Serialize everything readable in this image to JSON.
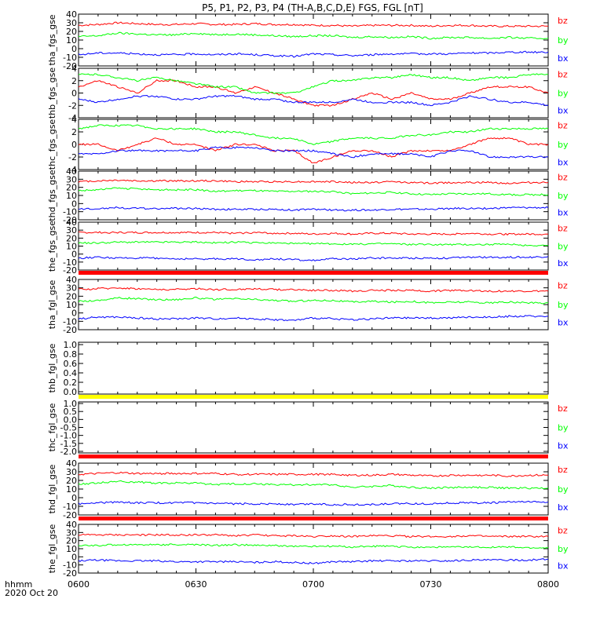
{
  "title": "P5, P1, P2, P3, P4 (TH-A,B,C,D,E) FGS, FGL [nT]",
  "x_axis": {
    "unit_label": "hhmm",
    "date_label": "2020 Oct 20",
    "ticks": [
      "0600",
      "0630",
      "0700",
      "0730",
      "0800"
    ],
    "range_minutes": [
      0,
      120
    ]
  },
  "colors": {
    "bx": "#0000ff",
    "by": "#00ff00",
    "bz": "#ff0000",
    "red_bar": "#ff0000",
    "yellow_bar": "#ffff00"
  },
  "chart_data": [
    {
      "type": "line",
      "ylabel": "tha_fgs_gse",
      "ylim": [
        -20,
        40
      ],
      "yticks": [
        -20,
        -10,
        0,
        10,
        20,
        30,
        40
      ],
      "legend": [
        "bz",
        "by",
        "bx"
      ],
      "series": [
        {
          "name": "bz",
          "values": [
            27,
            28,
            30,
            29,
            28,
            28,
            29,
            28,
            28,
            29,
            28,
            28,
            27,
            27,
            26,
            27,
            27,
            27,
            26,
            27,
            27,
            26,
            26,
            26,
            26
          ]
        },
        {
          "name": "by",
          "values": [
            14,
            15,
            18,
            17,
            16,
            16,
            18,
            16,
            17,
            16,
            15,
            14,
            15,
            15,
            13,
            14,
            13,
            14,
            12,
            13,
            13,
            12,
            13,
            12,
            12
          ]
        },
        {
          "name": "bx",
          "values": [
            -7,
            -5,
            -5,
            -6,
            -7,
            -7,
            -6,
            -7,
            -6,
            -7,
            -8,
            -9,
            -6,
            -7,
            -8,
            -7,
            -6,
            -6,
            -6,
            -6,
            -5,
            -5,
            -4,
            -4,
            -4
          ]
        }
      ]
    },
    {
      "type": "line",
      "ylabel": "thb_fgs_gse",
      "ylim": [
        -4,
        4
      ],
      "yticks": [
        -4,
        -2,
        0,
        2,
        4
      ],
      "legend": [
        "bz",
        "by",
        "bx"
      ],
      "series": [
        {
          "name": "bz",
          "values": [
            1,
            2,
            1,
            0,
            2,
            2,
            1,
            1,
            0,
            1,
            0,
            -1,
            -2,
            -2,
            -1,
            0,
            -1,
            0,
            -1,
            -1,
            0,
            1,
            1,
            1,
            0
          ]
        },
        {
          "name": "by",
          "values": [
            3,
            3,
            2.5,
            2,
            2.5,
            2,
            1.5,
            1,
            1,
            0,
            0,
            0,
            1,
            2,
            2,
            2.5,
            2.5,
            3,
            2.5,
            2.5,
            2,
            2.5,
            2.5,
            3,
            3
          ]
        },
        {
          "name": "bx",
          "values": [
            -1,
            -1.5,
            -1,
            -0.5,
            -0.5,
            -1,
            -1,
            -0.5,
            -0.5,
            -1,
            -1,
            -1.5,
            -1.5,
            -1.5,
            -1,
            -1.5,
            -1.5,
            -1.5,
            -2,
            -1.5,
            -0.5,
            -1,
            -1.5,
            -1.5,
            -2
          ]
        }
      ]
    },
    {
      "type": "line",
      "ylabel": "thc_fgs_gse",
      "ylim": [
        -4,
        4
      ],
      "yticks": [
        -4,
        -2,
        0,
        2,
        4
      ],
      "legend": [
        "bz",
        "by",
        "bx"
      ],
      "series": [
        {
          "name": "bz",
          "values": [
            0,
            0,
            -1,
            0,
            1,
            0,
            0,
            -1,
            0,
            0,
            -1,
            -1,
            -3,
            -2,
            -1,
            -1,
            -2,
            -1,
            -1,
            -1,
            0,
            1,
            1,
            0,
            0
          ]
        },
        {
          "name": "by",
          "values": [
            2.5,
            3,
            3,
            3,
            2.5,
            2.5,
            2.5,
            2,
            2,
            1.5,
            1,
            1,
            0,
            0.5,
            1,
            1,
            1,
            1.5,
            1.5,
            2,
            2,
            2.5,
            2.5,
            2.5,
            2.5
          ]
        },
        {
          "name": "bx",
          "values": [
            -1.5,
            -1.5,
            -1,
            -1,
            -1,
            -1,
            -1,
            -0.5,
            -0.5,
            -0.5,
            -1,
            -1,
            -1,
            -1.5,
            -2,
            -1.5,
            -1.5,
            -1.5,
            -2,
            -1,
            -1,
            -2,
            -2,
            -2,
            -2
          ]
        }
      ]
    },
    {
      "type": "line",
      "ylabel": "thd_fgs_gse",
      "ylim": [
        -20,
        40
      ],
      "yticks": [
        -20,
        -10,
        0,
        10,
        20,
        30,
        40
      ],
      "legend": [
        "bz",
        "by",
        "bx"
      ],
      "series": [
        {
          "name": "bz",
          "values": [
            27,
            28,
            29,
            28,
            28,
            28,
            28,
            28,
            27,
            27,
            27,
            27,
            27,
            27,
            26,
            26,
            27,
            26,
            25,
            26,
            26,
            26,
            25,
            26,
            26
          ]
        },
        {
          "name": "by",
          "values": [
            16,
            17,
            19,
            18,
            17,
            17,
            17,
            15,
            16,
            16,
            15,
            15,
            15,
            15,
            12,
            13,
            14,
            12,
            11,
            12,
            12,
            12,
            11,
            11,
            11
          ]
        },
        {
          "name": "bx",
          "values": [
            -7,
            -6,
            -5,
            -6,
            -6,
            -6,
            -6,
            -7,
            -7,
            -7,
            -7,
            -8,
            -7,
            -8,
            -8,
            -8,
            -7,
            -7,
            -7,
            -6,
            -6,
            -6,
            -5,
            -5,
            -5
          ]
        }
      ]
    },
    {
      "type": "line",
      "ylabel": "the_fgs_gse",
      "ylim": [
        -20,
        40
      ],
      "yticks": [
        -20,
        -10,
        0,
        10,
        20,
        30,
        40
      ],
      "legend": [
        "bz",
        "by",
        "bx"
      ],
      "series": [
        {
          "name": "bz",
          "values": [
            27,
            27,
            27,
            27,
            27,
            27,
            27,
            27,
            26,
            27,
            26,
            26,
            25,
            26,
            25,
            26,
            26,
            25,
            25,
            25,
            26,
            25,
            25,
            25,
            25
          ]
        },
        {
          "name": "by",
          "values": [
            14,
            14,
            15,
            15,
            15,
            15,
            15,
            14,
            15,
            14,
            14,
            13,
            13,
            13,
            12,
            13,
            13,
            12,
            12,
            12,
            12,
            12,
            12,
            11,
            11
          ]
        },
        {
          "name": "bx",
          "values": [
            -5,
            -4,
            -5,
            -5,
            -5,
            -6,
            -6,
            -6,
            -6,
            -7,
            -6,
            -7,
            -8,
            -6,
            -6,
            -5,
            -5,
            -5,
            -5,
            -5,
            -4,
            -4,
            -4,
            -4,
            -3
          ]
        }
      ]
    },
    {
      "type": "line",
      "ylabel": "tha_fgl_gse",
      "ylim": [
        -20,
        40
      ],
      "yticks": [
        -20,
        -10,
        0,
        10,
        20,
        30,
        40
      ],
      "legend": [
        "bz",
        "by",
        "bx"
      ],
      "series": [
        {
          "name": "bz",
          "values": [
            28,
            29,
            30,
            29,
            28,
            28,
            29,
            28,
            28,
            29,
            28,
            28,
            27,
            27,
            26,
            27,
            27,
            27,
            26,
            27,
            27,
            26,
            26,
            26,
            26
          ]
        },
        {
          "name": "by",
          "values": [
            14,
            15,
            18,
            17,
            16,
            16,
            18,
            16,
            17,
            16,
            15,
            14,
            15,
            15,
            13,
            14,
            13,
            14,
            12,
            13,
            13,
            12,
            13,
            12,
            12
          ]
        },
        {
          "name": "bx",
          "values": [
            -7,
            -5,
            -5,
            -6,
            -7,
            -7,
            -6,
            -7,
            -6,
            -7,
            -8,
            -9,
            -6,
            -7,
            -8,
            -7,
            -6,
            -6,
            -6,
            -6,
            -5,
            -5,
            -4,
            -4,
            -4
          ]
        }
      ]
    },
    {
      "type": "line",
      "ylabel": "thb_fgl_gse",
      "ylim": [
        -0.05,
        1.05
      ],
      "yticks": [
        0.0,
        0.2,
        0.4,
        0.6,
        0.8,
        1.0
      ],
      "tick_labels": [
        "0.0",
        "0.2",
        "0.4",
        "0.6",
        "0.8",
        "1.0"
      ],
      "legend": [],
      "series": []
    },
    {
      "type": "line",
      "ylabel": "thc_fgl_gse",
      "ylim": [
        -2.1,
        1.1
      ],
      "yticks": [
        -2.0,
        -1.5,
        -1.0,
        -0.5,
        0.0,
        0.5,
        1.0
      ],
      "tick_labels": [
        "-2.0",
        "-1.5",
        "-1.0",
        "-0.5",
        "0.0",
        "0.5",
        "1.0"
      ],
      "legend": [
        "bz",
        "by",
        "bx"
      ],
      "series": []
    },
    {
      "type": "line",
      "ylabel": "thd_fgl_gse",
      "ylim": [
        -20,
        40
      ],
      "yticks": [
        -20,
        -10,
        0,
        10,
        20,
        30,
        40
      ],
      "legend": [
        "bz",
        "by",
        "bx"
      ],
      "series": [
        {
          "name": "bz",
          "values": [
            27,
            28,
            29,
            28,
            28,
            28,
            28,
            28,
            27,
            27,
            27,
            27,
            27,
            27,
            26,
            26,
            27,
            26,
            25,
            26,
            26,
            26,
            25,
            26,
            26
          ]
        },
        {
          "name": "by",
          "values": [
            16,
            17,
            19,
            18,
            17,
            17,
            17,
            15,
            16,
            16,
            15,
            15,
            15,
            15,
            12,
            13,
            14,
            12,
            11,
            12,
            12,
            12,
            11,
            11,
            11
          ]
        },
        {
          "name": "bx",
          "values": [
            -7,
            -6,
            -5,
            -6,
            -6,
            -6,
            -6,
            -7,
            -7,
            -7,
            -7,
            -8,
            -7,
            -8,
            -8,
            -8,
            -7,
            -7,
            -7,
            -6,
            -6,
            -6,
            -5,
            -5,
            -5
          ]
        }
      ]
    },
    {
      "type": "line",
      "ylabel": "the_fgl_gse",
      "ylim": [
        -20,
        40
      ],
      "yticks": [
        -20,
        -10,
        0,
        10,
        20,
        30,
        40
      ],
      "legend": [
        "bz",
        "by",
        "bx"
      ],
      "series": [
        {
          "name": "bz",
          "values": [
            27,
            27,
            27,
            27,
            27,
            27,
            27,
            27,
            26,
            27,
            26,
            26,
            25,
            26,
            25,
            26,
            26,
            25,
            25,
            25,
            26,
            25,
            25,
            25,
            25
          ]
        },
        {
          "name": "by",
          "values": [
            14,
            14,
            15,
            15,
            15,
            15,
            15,
            14,
            15,
            14,
            14,
            13,
            13,
            13,
            12,
            13,
            13,
            12,
            12,
            12,
            12,
            12,
            12,
            11,
            11
          ]
        },
        {
          "name": "bx",
          "values": [
            -5,
            -4,
            -5,
            -5,
            -5,
            -6,
            -6,
            -6,
            -6,
            -7,
            -6,
            -7,
            -8,
            -6,
            -6,
            -5,
            -5,
            -5,
            -5,
            -5,
            -4,
            -4,
            -4,
            -4,
            -3
          ]
        }
      ]
    }
  ]
}
